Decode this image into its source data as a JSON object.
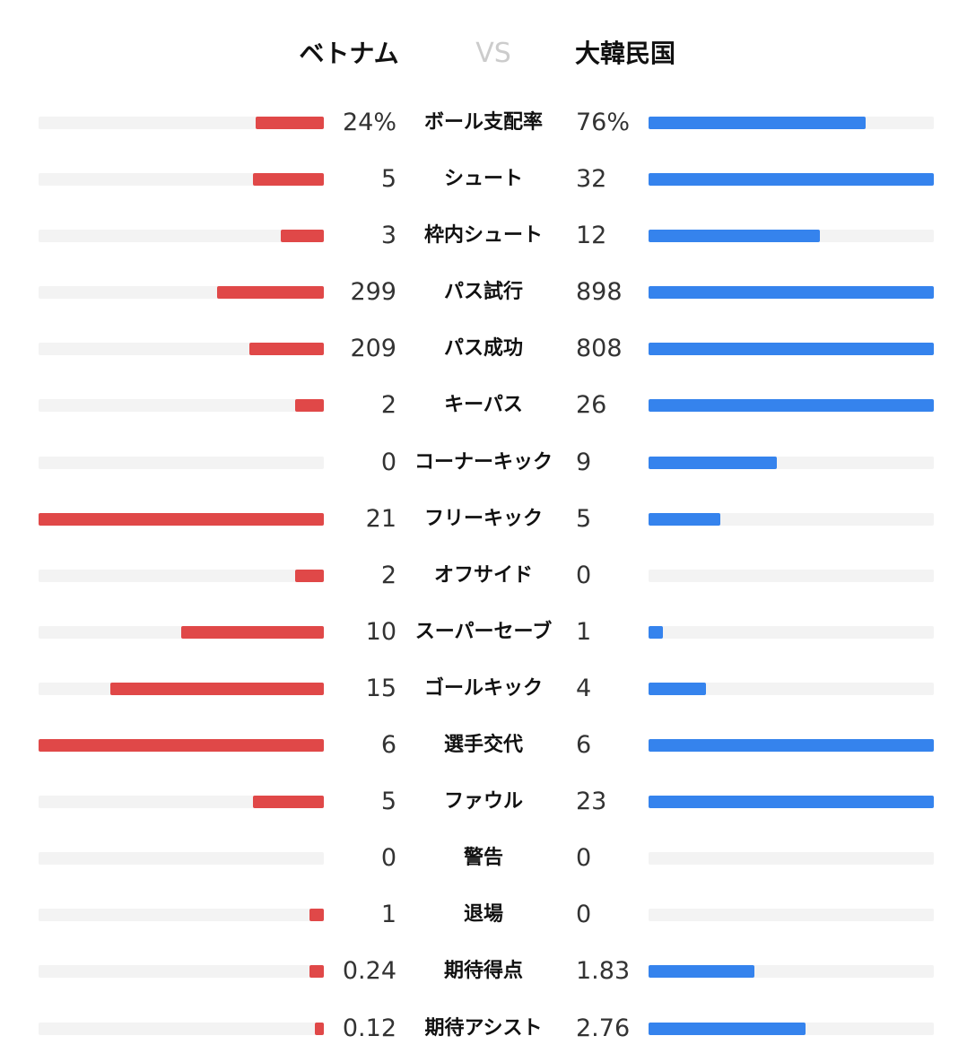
{
  "header": {
    "home_team": "ベトナム",
    "vs": "VS",
    "away_team": "大韓民国"
  },
  "colors": {
    "home": "#e04848",
    "away": "#3583ed",
    "track": "#f3f3f3"
  },
  "stats": [
    {
      "label": "ボール支配率",
      "home": "24%",
      "away": "76%",
      "home_fill": 0.24,
      "away_fill": 0.76
    },
    {
      "label": "シュート",
      "home": "5",
      "away": "32",
      "home_fill": 0.25,
      "away_fill": 1.0
    },
    {
      "label": "枠内シュート",
      "home": "3",
      "away": "12",
      "home_fill": 0.15,
      "away_fill": 0.6
    },
    {
      "label": "パス試行",
      "home": "299",
      "away": "898",
      "home_fill": 0.375,
      "away_fill": 1.0
    },
    {
      "label": "パス成功",
      "home": "209",
      "away": "808",
      "home_fill": 0.26,
      "away_fill": 1.0
    },
    {
      "label": "キーパス",
      "home": "2",
      "away": "26",
      "home_fill": 0.1,
      "away_fill": 1.0
    },
    {
      "label": "コーナーキック",
      "home": "0",
      "away": "9",
      "home_fill": 0,
      "away_fill": 0.45
    },
    {
      "label": "フリーキック",
      "home": "21",
      "away": "5",
      "home_fill": 1.0,
      "away_fill": 0.25
    },
    {
      "label": "オフサイド",
      "home": "2",
      "away": "0",
      "home_fill": 0.1,
      "away_fill": 0
    },
    {
      "label": "スーパーセーブ",
      "home": "10",
      "away": "1",
      "home_fill": 0.5,
      "away_fill": 0.05
    },
    {
      "label": "ゴールキック",
      "home": "15",
      "away": "4",
      "home_fill": 0.75,
      "away_fill": 0.2
    },
    {
      "label": "選手交代",
      "home": "6",
      "away": "6",
      "home_fill": 1.0,
      "away_fill": 1.0
    },
    {
      "label": "ファウル",
      "home": "5",
      "away": "23",
      "home_fill": 0.25,
      "away_fill": 1.0
    },
    {
      "label": "警告",
      "home": "0",
      "away": "0",
      "home_fill": 0,
      "away_fill": 0
    },
    {
      "label": "退場",
      "home": "1",
      "away": "0",
      "home_fill": 0.05,
      "away_fill": 0
    },
    {
      "label": "期待得点",
      "home": "0.24",
      "away": "1.83",
      "home_fill": 0.05,
      "away_fill": 0.37
    },
    {
      "label": "期待アシスト",
      "home": "0.12",
      "away": "2.76",
      "home_fill": 0.03,
      "away_fill": 0.55
    }
  ]
}
